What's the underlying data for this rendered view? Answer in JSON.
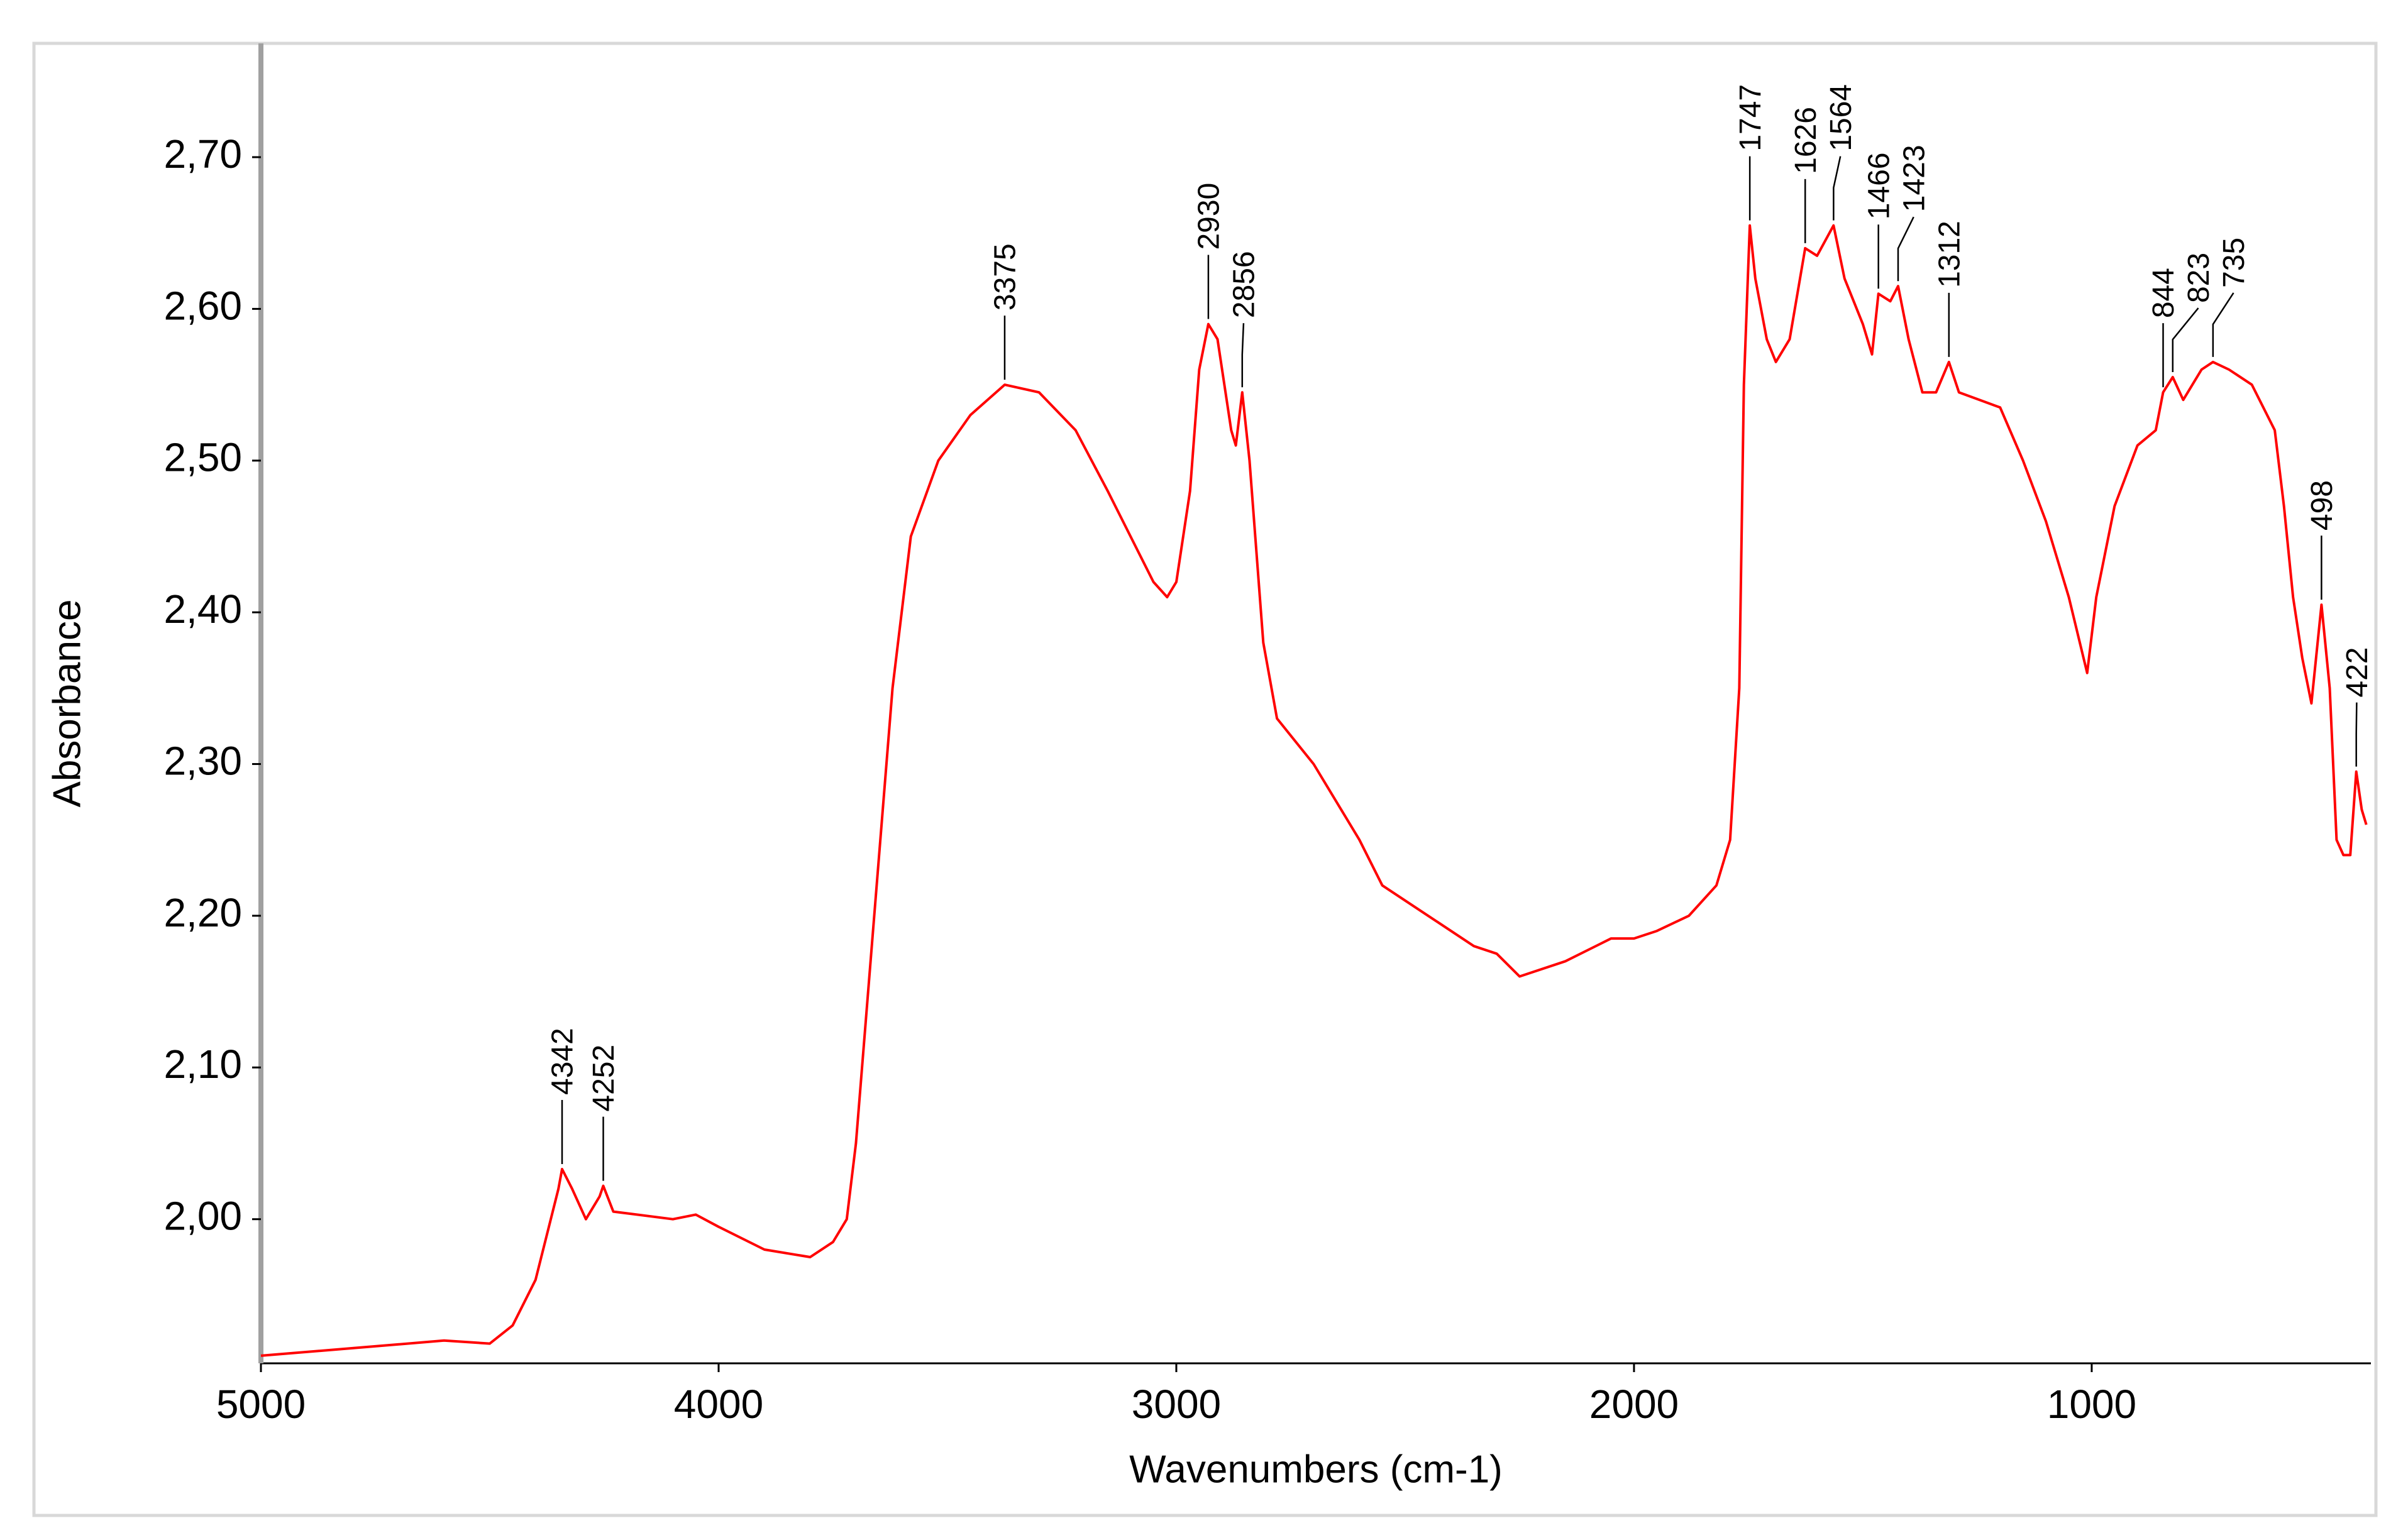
{
  "chart_data": {
    "type": "line",
    "xlabel": "Wavenumbers (cm-1)",
    "ylabel": "Absorbance",
    "xlim": [
      5000,
      390
    ],
    "ylim": [
      1.905,
      2.775
    ],
    "xticks": [
      5000,
      4000,
      3000,
      2000,
      1000
    ],
    "yticks": [
      {
        "value": 2.0,
        "label": "2,00"
      },
      {
        "value": 2.1,
        "label": "2,10"
      },
      {
        "value": 2.2,
        "label": "2,20"
      },
      {
        "value": 2.3,
        "label": "2,30"
      },
      {
        "value": 2.4,
        "label": "2,40"
      },
      {
        "value": 2.5,
        "label": "2,50"
      },
      {
        "value": 2.6,
        "label": "2,60"
      },
      {
        "value": 2.7,
        "label": "2,70"
      }
    ],
    "x": [
      5000,
      4800,
      4600,
      4500,
      4450,
      4400,
      4350,
      4342,
      4320,
      4290,
      4260,
      4252,
      4230,
      4100,
      4050,
      4000,
      3900,
      3800,
      3750,
      3720,
      3700,
      3660,
      3620,
      3580,
      3520,
      3450,
      3375,
      3300,
      3220,
      3150,
      3100,
      3050,
      3020,
      3000,
      2970,
      2950,
      2930,
      2910,
      2880,
      2870,
      2856,
      2840,
      2810,
      2780,
      2700,
      2600,
      2550,
      2450,
      2350,
      2300,
      2250,
      2150,
      2050,
      2000,
      1950,
      1880,
      1820,
      1790,
      1770,
      1760,
      1747,
      1735,
      1710,
      1690,
      1660,
      1626,
      1600,
      1564,
      1540,
      1500,
      1480,
      1466,
      1440,
      1423,
      1400,
      1370,
      1340,
      1312,
      1290,
      1200,
      1150,
      1100,
      1050,
      1010,
      990,
      950,
      900,
      860,
      844,
      823,
      800,
      760,
      735,
      700,
      650,
      600,
      580,
      560,
      540,
      520,
      498,
      480,
      465,
      450,
      435,
      422,
      410,
      400
    ],
    "series": [
      {
        "name": "Absorbance",
        "color": "#ff0000",
        "values": [
          1.91,
          1.915,
          1.92,
          1.918,
          1.93,
          1.96,
          2.02,
          2.033,
          2.02,
          2.0,
          2.015,
          2.022,
          2.005,
          2.0,
          2.003,
          1.995,
          1.98,
          1.975,
          1.985,
          2.0,
          2.05,
          2.2,
          2.35,
          2.45,
          2.5,
          2.53,
          2.55,
          2.545,
          2.52,
          2.48,
          2.45,
          2.42,
          2.41,
          2.42,
          2.48,
          2.56,
          2.59,
          2.58,
          2.52,
          2.51,
          2.545,
          2.5,
          2.38,
          2.33,
          2.3,
          2.25,
          2.22,
          2.2,
          2.18,
          2.175,
          2.16,
          2.17,
          2.185,
          2.185,
          2.19,
          2.2,
          2.22,
          2.25,
          2.35,
          2.55,
          2.655,
          2.62,
          2.58,
          2.565,
          2.58,
          2.64,
          2.635,
          2.655,
          2.62,
          2.59,
          2.57,
          2.61,
          2.605,
          2.615,
          2.58,
          2.545,
          2.545,
          2.565,
          2.545,
          2.535,
          2.5,
          2.46,
          2.41,
          2.36,
          2.41,
          2.47,
          2.51,
          2.52,
          2.545,
          2.555,
          2.54,
          2.56,
          2.565,
          2.56,
          2.55,
          2.52,
          2.47,
          2.41,
          2.37,
          2.34,
          2.405,
          2.35,
          2.25,
          2.24,
          2.24,
          2.295,
          2.27,
          2.26
        ]
      }
    ],
    "annotations": [
      {
        "x": 4342,
        "y": 2.033
      },
      {
        "x": 4252,
        "y": 2.022
      },
      {
        "x": 3375,
        "y": 2.55
      },
      {
        "x": 2930,
        "y": 2.59
      },
      {
        "x": 2856,
        "y": 2.545
      },
      {
        "x": 1747,
        "y": 2.655
      },
      {
        "x": 1626,
        "y": 2.64
      },
      {
        "x": 1564,
        "y": 2.655
      },
      {
        "x": 1466,
        "y": 2.61
      },
      {
        "x": 1423,
        "y": 2.615
      },
      {
        "x": 1312,
        "y": 2.565
      },
      {
        "x": 844,
        "y": 2.545
      },
      {
        "x": 823,
        "y": 2.555
      },
      {
        "x": 735,
        "y": 2.565
      },
      {
        "x": 498,
        "y": 2.405
      },
      {
        "x": 422,
        "y": 2.295
      }
    ]
  }
}
